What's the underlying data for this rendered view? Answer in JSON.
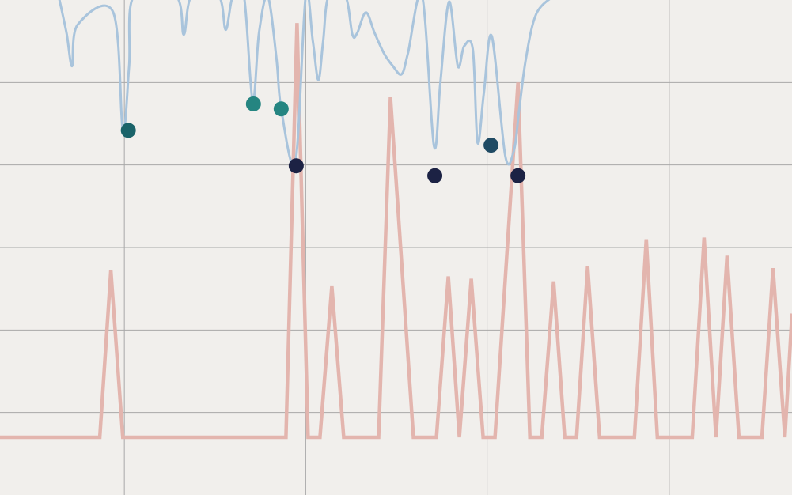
{
  "chart_data": {
    "type": "line",
    "title": "",
    "xlabel": "",
    "ylabel": "",
    "xlim": [
      0,
      100
    ],
    "ylim": [
      0,
      6
    ],
    "grid": true,
    "grid_x": [
      15.7,
      38.6,
      61.5,
      84.5
    ],
    "grid_y": [
      1,
      2,
      3,
      4,
      5
    ],
    "colors": {
      "background": "#f1efec",
      "grid": "#a8a8a8",
      "spikes": "#e3b5ae",
      "curve": "#a9c4dc",
      "marker_dark": "#1c2244",
      "marker_mid": "#1f4a63",
      "marker_teal": "#1a6369",
      "marker_green": "#258581"
    },
    "series": [
      {
        "name": "spikes",
        "style": "polyline",
        "x": [
          0,
          12.6,
          14.0,
          15.5,
          36.1,
          37.5,
          38.9,
          40.4,
          41.9,
          43.4,
          47.8,
          49.3,
          52.2,
          55.1,
          56.6,
          58.0,
          59.5,
          61.0,
          62.5,
          65.4,
          66.9,
          68.4,
          69.9,
          71.3,
          72.8,
          74.2,
          75.7,
          80.1,
          81.6,
          83.0,
          87.4,
          88.9,
          90.4,
          91.8,
          93.3,
          96.2,
          97.6,
          99.1,
          100
        ],
        "y": [
          0.7,
          0.7,
          2.72,
          0.7,
          0.7,
          5.72,
          0.7,
          0.7,
          2.53,
          0.7,
          0.7,
          4.82,
          0.7,
          0.7,
          2.65,
          0.7,
          2.62,
          0.7,
          0.7,
          5.0,
          0.7,
          0.7,
          2.59,
          0.7,
          0.7,
          2.77,
          0.7,
          0.7,
          3.1,
          0.7,
          0.7,
          3.12,
          0.7,
          2.9,
          0.7,
          0.7,
          2.75,
          0.7,
          2.2
        ]
      },
      {
        "name": "curve",
        "style": "smooth",
        "x": [
          7.4,
          8.4,
          9.1,
          9.8,
          14.3,
          15.5,
          16.3,
          16.9,
          22.2,
          23.2,
          24.2,
          27.6,
          28.5,
          29.4,
          30.8,
          31.9,
          32.7,
          33.8,
          34.9,
          35.5,
          37.3,
          38.6,
          39.5,
          40.2,
          40.8,
          41.5,
          43.6,
          44.5,
          45.1,
          46.2,
          47.3,
          48.5,
          49.6,
          50.7,
          51.5,
          53.3,
          54.8,
          55.6,
          56.7,
          57.8,
          58.6,
          59.7,
          60.3,
          61.1,
          62.1,
          63.8,
          64.9,
          65.5,
          66.4,
          67.7,
          69.9
        ],
        "y": [
          6.05,
          5.6,
          5.2,
          5.7,
          5.85,
          4.43,
          5.2,
          6.05,
          6.05,
          5.58,
          6.05,
          6.05,
          5.64,
          6.05,
          6.05,
          4.78,
          5.6,
          6.05,
          5.3,
          4.68,
          4.04,
          6.05,
          5.5,
          5.03,
          5.5,
          6.05,
          6.05,
          5.58,
          5.6,
          5.85,
          5.6,
          5.35,
          5.2,
          5.1,
          5.35,
          6.05,
          4.23,
          5.0,
          5.98,
          5.2,
          5.44,
          5.4,
          4.27,
          4.88,
          5.56,
          4.11,
          4.18,
          4.63,
          5.29,
          5.83,
          6.05
        ]
      }
    ],
    "markers": [
      {
        "x": 16.2,
        "y": 4.42,
        "color": "marker_teal"
      },
      {
        "x": 32.0,
        "y": 4.74,
        "color": "marker_green"
      },
      {
        "x": 35.5,
        "y": 4.68,
        "color": "marker_green"
      },
      {
        "x": 37.4,
        "y": 3.99,
        "color": "marker_dark"
      },
      {
        "x": 54.9,
        "y": 3.87,
        "color": "marker_dark"
      },
      {
        "x": 62.0,
        "y": 4.24,
        "color": "marker_mid"
      },
      {
        "x": 65.4,
        "y": 3.87,
        "color": "marker_dark"
      }
    ]
  }
}
